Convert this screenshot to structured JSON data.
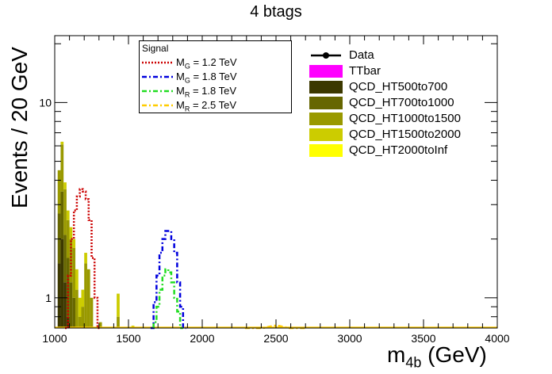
{
  "chart_data": {
    "type": "bar",
    "title": "4 btags",
    "ylabel": "Events / 20 GeV",
    "xlabel_main": "m",
    "xlabel_sub": "4b",
    "xlabel_unit": " (GeV)",
    "xlim": [
      1000,
      4000
    ],
    "ylim": [
      0.7,
      22
    ],
    "yscale": "log",
    "x_ticks": [
      "1000",
      "1500",
      "2000",
      "2500",
      "3000",
      "3500",
      "4000"
    ],
    "y_ticks": [
      "1",
      "10"
    ],
    "grid": false,
    "legend_signal_title": "Signal",
    "signal_legend": [
      {
        "prefix": "M",
        "sub": "G",
        "suffix": " = 1.2 TeV",
        "color": "#cc0000",
        "dash": "2,2"
      },
      {
        "prefix": "M",
        "sub": "G",
        "suffix": " = 1.8 TeV",
        "color": "#0000dd",
        "dash": "6,3,2,3"
      },
      {
        "prefix": "M",
        "sub": "R",
        "suffix": " = 1.8 TeV",
        "color": "#22dd22",
        "dash": "6,3,2,3"
      },
      {
        "prefix": "M",
        "sub": "R",
        "suffix": " = 2.5 TeV",
        "color": "#ffcc00",
        "dash": "6,3,2,3"
      }
    ],
    "background_legend": [
      {
        "label": "Data",
        "kind": "marker",
        "color": "#000000"
      },
      {
        "label": "TTbar",
        "kind": "fill",
        "color": "#ff00ff"
      },
      {
        "label": "QCD_HT500to700",
        "kind": "fill",
        "color": "#3c3800"
      },
      {
        "label": "QCD_HT700to1000",
        "kind": "fill",
        "color": "#666600"
      },
      {
        "label": "QCD_HT1000to1500",
        "kind": "fill",
        "color": "#999900"
      },
      {
        "label": "QCD_HT1500to2000",
        "kind": "fill",
        "color": "#cccc00"
      },
      {
        "label": "QCD_HT2000toInf",
        "kind": "fill",
        "color": "#ffff00"
      }
    ],
    "stacked_bins": [
      {
        "x0": 1020,
        "x1": 1040,
        "layers": [
          1.5,
          1.2,
          1.8,
          0.0,
          0.0
        ]
      },
      {
        "x0": 1040,
        "x1": 1060,
        "layers": [
          2.0,
          1.5,
          2.6,
          0.2,
          0.0
        ]
      },
      {
        "x0": 1060,
        "x1": 1080,
        "layers": [
          1.2,
          0.9,
          1.5,
          0.3,
          0.0
        ]
      },
      {
        "x0": 1080,
        "x1": 1100,
        "layers": [
          0.8,
          0.8,
          0.9,
          0.3,
          0.0
        ]
      },
      {
        "x0": 1100,
        "x1": 1120,
        "layers": [
          0.6,
          0.6,
          0.8,
          0.3,
          0.0
        ]
      },
      {
        "x0": 1120,
        "x1": 1140,
        "layers": [
          0.5,
          0.5,
          0.8,
          0.2,
          0.0
        ]
      },
      {
        "x0": 1140,
        "x1": 1160,
        "layers": [
          0.0,
          0.4,
          0.7,
          0.3,
          0.0
        ]
      },
      {
        "x0": 1160,
        "x1": 1180,
        "layers": [
          0.0,
          0.3,
          0.5,
          0.2,
          0.0
        ]
      },
      {
        "x0": 1180,
        "x1": 1200,
        "layers": [
          0.0,
          0.3,
          0.6,
          0.2,
          0.0
        ]
      },
      {
        "x0": 1200,
        "x1": 1220,
        "layers": [
          0.0,
          0.7,
          0.8,
          0.2,
          0.0
        ]
      },
      {
        "x0": 1220,
        "x1": 1240,
        "layers": [
          0.0,
          0.6,
          0.8,
          0.0,
          0.0
        ]
      },
      {
        "x0": 1240,
        "x1": 1260,
        "layers": [
          0.0,
          0.5,
          0.5,
          0.0,
          0.0
        ]
      },
      {
        "x0": 1300,
        "x1": 1320,
        "layers": [
          0.0,
          0.0,
          0.75,
          0.0,
          0.0
        ]
      },
      {
        "x0": 1420,
        "x1": 1440,
        "layers": [
          0.0,
          0.0,
          0.8,
          0.25,
          0.0
        ]
      },
      {
        "x0": 1520,
        "x1": 1540,
        "layers": [
          0.0,
          0.0,
          0.0,
          0.72,
          0.0
        ]
      },
      {
        "x0": 2480,
        "x1": 2500,
        "layers": [
          0.0,
          0.0,
          0.0,
          0.0,
          0.71
        ]
      }
    ],
    "signal_series": [
      {
        "name_index": 0,
        "x": [
          1080,
          1100,
          1120,
          1140,
          1160,
          1180,
          1200,
          1220,
          1240,
          1260,
          1280,
          1300
        ],
        "y": [
          0.7,
          1.3,
          2.0,
          2.8,
          3.3,
          3.6,
          3.5,
          3.2,
          2.5,
          1.6,
          1.0,
          0.7
        ]
      },
      {
        "name_index": 1,
        "x": [
          1660,
          1680,
          1700,
          1720,
          1740,
          1760,
          1780,
          1800,
          1820,
          1840,
          1860,
          1880
        ],
        "y": [
          0.7,
          0.95,
          1.3,
          1.7,
          2.0,
          2.2,
          2.2,
          2.0,
          1.7,
          1.2,
          0.9,
          0.7
        ]
      },
      {
        "name_index": 2,
        "x": [
          1680,
          1700,
          1720,
          1740,
          1760,
          1780,
          1800,
          1820,
          1840,
          1860
        ],
        "y": [
          0.75,
          0.9,
          1.1,
          1.3,
          1.4,
          1.35,
          1.2,
          1.0,
          0.85,
          0.7
        ]
      },
      {
        "name_index": 3,
        "x": [
          2300,
          2400,
          2500,
          2600,
          2700
        ],
        "y": [
          0.7,
          0.7,
          0.72,
          0.7,
          0.7
        ]
      }
    ]
  }
}
